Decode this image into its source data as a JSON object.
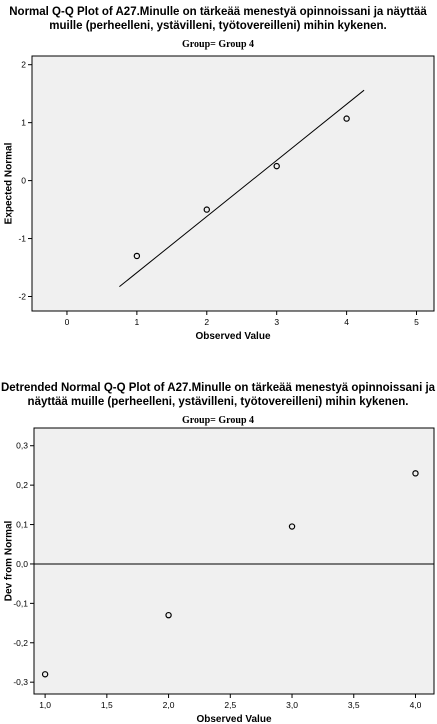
{
  "chart_data": [
    {
      "type": "scatter",
      "title_lines": [
        "Normal Q-Q Plot of A27.Minulle on tärkeää menestyä opinnoissani ja näyttää",
        "muille (perheelleni, ystävilleni, työtovereilleni) mihin kykenen."
      ],
      "subtitle": "Group= Group 4",
      "xlabel": "Observed Value",
      "ylabel": "Expected Normal",
      "xlim": [
        -0.5,
        5.25
      ],
      "ylim": [
        -2.25,
        2.15
      ],
      "xticks": [
        "0",
        "1",
        "2",
        "3",
        "4",
        "5"
      ],
      "yticks": [
        "2",
        "1",
        "0",
        "-1",
        "-2"
      ],
      "xtick_values": [
        0,
        1,
        2,
        3,
        4,
        5
      ],
      "ytick_values": [
        2,
        1,
        0,
        -1,
        -2
      ],
      "points": [
        {
          "x": 1,
          "y": -1.3
        },
        {
          "x": 2,
          "y": -0.5
        },
        {
          "x": 3,
          "y": 0.25
        },
        {
          "x": 4,
          "y": 1.07
        }
      ],
      "reference_line": {
        "x": [
          0.75,
          4.25
        ],
        "y": [
          -1.83,
          1.56
        ]
      }
    },
    {
      "type": "scatter",
      "title_lines": [
        "Detrended Normal Q-Q Plot of A27.Minulle on tärkeää menestyä opinnoissani ja",
        "näyttää muille (perheelleni, ystävilleni, työtovereilleni) mihin kykenen."
      ],
      "subtitle": "Group= Group 4",
      "xlabel": "Observed Value",
      "ylabel": "Dev from Normal",
      "xlim": [
        0.91,
        4.15
      ],
      "ylim": [
        -0.33,
        0.345
      ],
      "xticks": [
        "1,0",
        "1,5",
        "2,0",
        "2,5",
        "3,0",
        "3,5",
        "4,0"
      ],
      "yticks": [
        "0,3",
        "0,2",
        "0,1",
        "0,0",
        "-0,1",
        "-0,2",
        "-0,3"
      ],
      "xtick_values": [
        1.0,
        1.5,
        2.0,
        2.5,
        3.0,
        3.5,
        4.0
      ],
      "ytick_values": [
        0.3,
        0.2,
        0.1,
        0.0,
        -0.1,
        -0.2,
        -0.3
      ],
      "points": [
        {
          "x": 1,
          "y": -0.28
        },
        {
          "x": 2,
          "y": -0.13
        },
        {
          "x": 3,
          "y": 0.095
        },
        {
          "x": 4,
          "y": 0.23
        }
      ],
      "reference_hline": 0
    }
  ]
}
